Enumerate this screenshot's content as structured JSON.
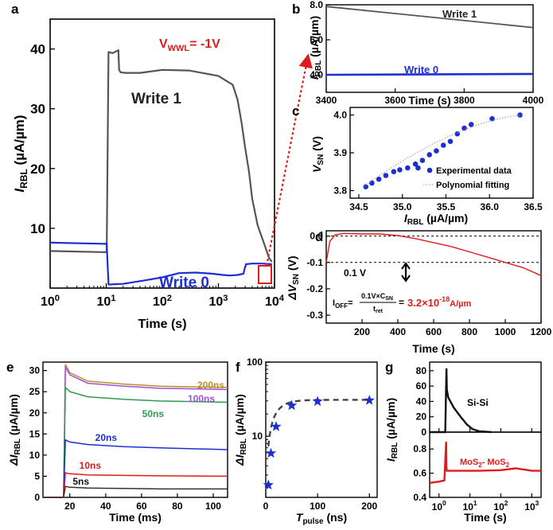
{
  "panels": {
    "a": {
      "letter": "a",
      "annotation": "V_WWL = -1V",
      "ann_main": "V",
      "ann_sub": "WWL",
      "ann_rest": "= -1V",
      "xlabel": "Time (s)",
      "ylabel": "I_RBL (µA/µm)",
      "ylabel_main": "I",
      "ylabel_sub": "RBL",
      "ylabel_rest": " (µA/µm)",
      "xticks": [
        "10^0",
        "10^1",
        "10^2",
        "10^3",
        "10^4"
      ],
      "yticks": [
        "10",
        "20",
        "30",
        "40"
      ],
      "series_labels": [
        "Write 1",
        "Write 0"
      ]
    },
    "b": {
      "letter": "b",
      "xlabel": "Time (s)",
      "ylabel": "I_RBL (µA/µm)",
      "ylabel_main": "I",
      "ylabel_sub": "RBL",
      "ylabel_rest": " (µA/µm)",
      "xticks": [
        "3400",
        "3600",
        "3800",
        "4000"
      ],
      "yticks": [
        "4.0",
        "6.0",
        "8.0"
      ],
      "series_labels": [
        "Write 1",
        "Write 0"
      ]
    },
    "c": {
      "letter": "c",
      "xlabel": "I_RBL (µA/µm)",
      "xlabel_main": "I",
      "xlabel_sub": "RBL",
      "xlabel_rest": " (µA/µm)",
      "ylabel": "V_SN (V)",
      "ylabel_main": "V",
      "ylabel_sub": "SN",
      "ylabel_rest": " (V)",
      "xticks": [
        "34.5",
        "35.0",
        "35.5",
        "36.0",
        "36.5"
      ],
      "yticks": [
        "3.8",
        "3.9",
        "4.0"
      ],
      "legend": [
        "Experimental data",
        "Polynomial fitting"
      ]
    },
    "d": {
      "letter": "d",
      "xlabel": "Time (s)",
      "ylabel": "ΔV_SN (V)",
      "ylabel_main": "ΔV",
      "ylabel_sub": "SN",
      "ylabel_rest": " (V)",
      "xticks": [
        "200",
        "400",
        "600",
        "800",
        "1000",
        "1200"
      ],
      "yticks": [
        "0.0",
        "-0.1",
        "-0.2",
        "-0.3"
      ],
      "delta_label": "0.1 V",
      "formula_lhs": "I_OFF",
      "formula_lhs_main": "I",
      "formula_lhs_sub": "OFF",
      "formula_num": "0.1V×C_SN",
      "formula_num_main": "0.1V×C",
      "formula_num_sub": "SN",
      "formula_den": "t_ret",
      "formula_den_main": "t",
      "formula_den_sub": "ret",
      "formula_value": "3.2×10^-18 A/µm",
      "formula_value_main": "3.2×10",
      "formula_value_exp": "-18",
      "formula_value_unit": "A/µm"
    },
    "e": {
      "letter": "e",
      "xlabel": "Time (ms)",
      "ylabel": "ΔI_RBL (µA/µm)",
      "ylabel_main": "ΔI",
      "ylabel_sub": "RBL",
      "ylabel_rest": " (µA/µm)",
      "xticks": [
        "20",
        "40",
        "60",
        "80",
        "100"
      ],
      "yticks": [
        "0",
        "5",
        "10",
        "15",
        "20",
        "25",
        "30"
      ],
      "series_labels": [
        "200ns",
        "100ns",
        "50ns",
        "20ns",
        "10ns",
        "5ns"
      ]
    },
    "f": {
      "letter": "f",
      "xlabel": "T_pulse (ns)",
      "xlabel_main": "T",
      "xlabel_sub": "pulse",
      "xlabel_rest": " (ns)",
      "ylabel": "ΔI_RBL (µA/µm)",
      "ylabel_main": "ΔI",
      "ylabel_sub": "RBL",
      "ylabel_rest": " (µA/µm)",
      "xticks": [
        "0",
        "100",
        "200"
      ],
      "yticks": [
        "10",
        "100"
      ]
    },
    "g": {
      "letter": "g",
      "xlabel": "Time (s)",
      "ylabel": "I_RBL (µA/µm)",
      "ylabel_main": "I",
      "ylabel_sub": "RBL",
      "ylabel_rest": " (µA/µm)",
      "xticks": [
        "10^0",
        "10^1",
        "10^2",
        "10^3"
      ],
      "top_yticks": [
        "0",
        "20",
        "40",
        "60",
        "80"
      ],
      "bottom_yticks": [
        "0.4",
        "0.6",
        "0.8"
      ],
      "top_label": "Si-Si",
      "bottom_label": "MoS2- MoS2",
      "bottom_label_a": "MoS",
      "bottom_label_b": "- MoS"
    }
  },
  "colors": {
    "write1": "#555555",
    "write0": "#1d2fd1",
    "red": "#e01b1b",
    "green": "#2e9a4f",
    "purple": "#a24fd8",
    "gold": "#b8912a",
    "black": "#111111"
  },
  "chart_data": [
    {
      "panel": "a",
      "type": "line",
      "xscale": "log",
      "xlim": [
        1,
        10000
      ],
      "ylim": [
        0,
        45
      ],
      "xlabel": "Time (s)",
      "ylabel": "I_RBL (µA/µm)",
      "annotation": "V_WWL = -1V",
      "series": [
        {
          "name": "Write 1",
          "color": "#555555",
          "x": [
            1,
            9.5,
            10.2,
            11,
            13,
            16.5,
            17,
            18,
            22,
            40,
            100,
            300,
            1000,
            1800,
            2200,
            2600,
            3000,
            3500,
            4000,
            5000,
            6500,
            8000,
            9000
          ],
          "y": [
            6.2,
            6.0,
            6.0,
            39.5,
            39.3,
            39.8,
            36.5,
            36.1,
            36.0,
            36.0,
            36.5,
            36.4,
            35.5,
            34.0,
            31.5,
            27.5,
            23.5,
            19.5,
            15.0,
            10.5,
            7.5,
            5.0,
            4.4
          ]
        },
        {
          "name": "Write 0",
          "color": "#1d2fd1",
          "x": [
            1,
            9.5,
            10.2,
            11,
            20,
            50,
            100,
            200,
            400,
            800,
            1200,
            1600,
            2200,
            2800,
            3000,
            3050,
            3100,
            4000,
            6000,
            9000
          ],
          "y": [
            7.6,
            7.4,
            7.4,
            0.6,
            0.7,
            1.3,
            1.8,
            2.5,
            2.6,
            2.4,
            2.2,
            2.1,
            2.2,
            2.4,
            3.6,
            3.6,
            4.0,
            4.1,
            4.1,
            4.0
          ]
        }
      ]
    },
    {
      "panel": "b",
      "type": "line",
      "xlim": [
        3400,
        4000
      ],
      "ylim": [
        3.0,
        8.0
      ],
      "xlabel": "Time (s)",
      "ylabel": "I_RBL (µA/µm)",
      "series": [
        {
          "name": "Write 1",
          "color": "#555555",
          "x": [
            3400,
            4000
          ],
          "y": [
            7.9,
            6.7
          ]
        },
        {
          "name": "Write 0",
          "color": "#1d2fd1",
          "x": [
            3400,
            4000
          ],
          "y": [
            4.0,
            4.05
          ]
        }
      ]
    },
    {
      "panel": "c",
      "type": "scatter",
      "xlim": [
        34.4,
        36.5
      ],
      "ylim": [
        3.78,
        4.02
      ],
      "xlabel": "I_RBL (µA/µm)",
      "ylabel": "V_SN (V)",
      "series": [
        {
          "name": "Experimental data",
          "color": "#1d2fd1",
          "x": [
            34.58,
            34.65,
            34.73,
            34.81,
            34.9,
            34.97,
            35.06,
            35.15,
            35.18,
            35.23,
            35.31,
            35.39,
            35.47,
            35.55,
            35.63,
            35.71,
            35.79,
            36.03,
            36.35
          ],
          "y": [
            3.81,
            3.82,
            3.83,
            3.84,
            3.85,
            3.855,
            3.86,
            3.87,
            3.86,
            3.88,
            3.895,
            3.905,
            3.92,
            3.93,
            3.95,
            3.965,
            3.975,
            3.99,
            4.0
          ]
        }
      ]
    },
    {
      "panel": "d",
      "type": "line",
      "xlim": [
        0,
        1200
      ],
      "ylim": [
        -0.33,
        0.02
      ],
      "xlabel": "Time (s)",
      "ylabel": "ΔV_SN (V)",
      "reference_lines": [
        0.0,
        -0.1
      ],
      "series": [
        {
          "name": "",
          "color": "#e01b1b",
          "x": [
            0,
            20,
            50,
            100,
            200,
            300,
            400,
            500,
            600,
            700,
            800,
            900,
            1000,
            1100,
            1200
          ],
          "y": [
            -0.1,
            -0.02,
            0.005,
            0.01,
            0.008,
            0.008,
            0.002,
            -0.01,
            -0.025,
            -0.04,
            -0.06,
            -0.08,
            -0.1,
            -0.12,
            -0.15
          ]
        }
      ]
    },
    {
      "panel": "e",
      "type": "line",
      "xlim": [
        5,
        108
      ],
      "ylim": [
        0,
        32
      ],
      "xlabel": "Time (ms)",
      "ylabel": "ΔI_RBL (µA/µm)",
      "series": [
        {
          "name": "200ns",
          "color": "#b8912a",
          "x": [
            5,
            16.5,
            17.5,
            20,
            30,
            50,
            70,
            108
          ],
          "y": [
            0,
            0,
            31.5,
            29.5,
            27.5,
            26.8,
            26.3,
            26.0
          ]
        },
        {
          "name": "100ns",
          "color": "#a24fd8",
          "x": [
            5,
            16.5,
            17.5,
            20,
            30,
            50,
            70,
            108
          ],
          "y": [
            0,
            0,
            30.8,
            29.0,
            27.0,
            26.3,
            25.8,
            25.5
          ]
        },
        {
          "name": "50ns",
          "color": "#2e9a4f",
          "x": [
            5,
            16.5,
            17.5,
            20,
            30,
            50,
            70,
            108
          ],
          "y": [
            0,
            0,
            26.0,
            25.0,
            23.8,
            23.2,
            22.8,
            22.5
          ]
        },
        {
          "name": "20ns",
          "color": "#1d2fd1",
          "x": [
            5,
            16.5,
            17.5,
            20,
            30,
            50,
            70,
            108
          ],
          "y": [
            0,
            0,
            13.6,
            13.1,
            12.5,
            12.0,
            11.7,
            11.3
          ]
        },
        {
          "name": "10ns",
          "color": "#e01b1b",
          "x": [
            5,
            16.5,
            17.5,
            20,
            30,
            50,
            70,
            108
          ],
          "y": [
            0,
            0,
            5.8,
            5.6,
            5.3,
            5.2,
            5.1,
            5.0
          ]
        },
        {
          "name": "5ns",
          "color": "#333333",
          "x": [
            5,
            16.5,
            17.5,
            20,
            30,
            50,
            70,
            108
          ],
          "y": [
            0,
            0,
            2.6,
            2.4,
            2.2,
            2.1,
            2.0,
            2.0
          ]
        }
      ]
    },
    {
      "panel": "f",
      "type": "scatter",
      "xlim": [
        0,
        215
      ],
      "ylim": [
        1.5,
        100
      ],
      "yscale": "log",
      "xlabel": "T_pulse (ns)",
      "ylabel": "ΔI_RBL (µA/µm)",
      "series": [
        {
          "name": "",
          "color": "#1d2fd1",
          "x": [
            5,
            10,
            20,
            50,
            100,
            200
          ],
          "y": [
            2.2,
            5.9,
            13.5,
            26.0,
            29.5,
            30.5
          ]
        }
      ]
    },
    {
      "panel": "g",
      "type": "line",
      "xscale": "log",
      "xlim": [
        0.5,
        2000
      ],
      "xlabel": "Time (s)",
      "ylabel": "I_RBL (µA/µm)",
      "subplots": [
        {
          "name": "Si-Si",
          "ylim": [
            0,
            85
          ],
          "color": "#111111",
          "x": [
            0.5,
            1.6,
            1.75,
            1.8,
            2.0,
            3,
            5,
            8,
            12,
            20,
            50
          ],
          "y": [
            0,
            0,
            83,
            55,
            45,
            32,
            20,
            10,
            4,
            1,
            0
          ]
        },
        {
          "name": "MoS2- MoS2",
          "ylim": [
            0.4,
            0.9
          ],
          "color": "#e01b1b",
          "x": [
            0.5,
            1.0,
            1.5,
            1.7,
            1.75,
            1.8,
            2.2,
            5,
            20,
            100,
            300,
            1000,
            2000
          ],
          "y": [
            0.52,
            0.53,
            0.54,
            0.86,
            0.64,
            0.62,
            0.62,
            0.62,
            0.62,
            0.625,
            0.64,
            0.62,
            0.62
          ]
        }
      ]
    }
  ]
}
